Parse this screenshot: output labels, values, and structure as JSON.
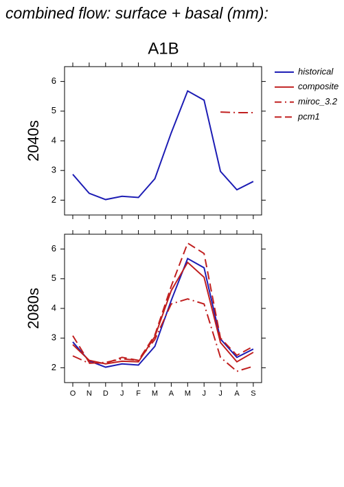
{
  "title": "combined flow: surface + basal (mm):",
  "subtitle": "A1B",
  "chart_data": [
    {
      "type": "line",
      "ylabel": "2040s",
      "ylim": [
        1.5,
        6.5
      ],
      "yticks": [
        2,
        3,
        4,
        5,
        6
      ],
      "series": [
        {
          "name": "historical",
          "color": "#1c1cb4",
          "dash": "solid",
          "values": [
            2.87,
            2.23,
            2.02,
            2.13,
            2.09,
            2.72,
            4.27,
            5.68,
            5.37,
            2.97,
            2.35,
            2.63
          ]
        },
        {
          "name": "miroc_3.2",
          "color": "#c01e1e",
          "dash": "dashdot",
          "values": [
            null,
            null,
            null,
            null,
            null,
            null,
            null,
            null,
            null,
            4.97,
            4.95,
            4.95
          ]
        }
      ]
    },
    {
      "type": "line",
      "ylabel": "2080s",
      "ylim": [
        1.5,
        6.5
      ],
      "yticks": [
        2,
        3,
        4,
        5,
        6
      ],
      "categories": [
        "O",
        "N",
        "D",
        "J",
        "F",
        "M",
        "A",
        "M",
        "J",
        "J",
        "A",
        "S"
      ],
      "series": [
        {
          "name": "historical",
          "color": "#1c1cb4",
          "dash": "solid",
          "values": [
            2.87,
            2.23,
            2.02,
            2.13,
            2.09,
            2.72,
            4.27,
            5.68,
            5.37,
            2.97,
            2.35,
            2.63
          ]
        },
        {
          "name": "composite",
          "color": "#c01e1e",
          "dash": "solid",
          "values": [
            2.78,
            2.25,
            2.13,
            2.22,
            2.2,
            3.05,
            4.6,
            5.55,
            5.05,
            2.85,
            2.2,
            2.52
          ]
        },
        {
          "name": "miroc_3.2",
          "color": "#c01e1e",
          "dash": "dashdot",
          "values": [
            2.4,
            2.15,
            2.18,
            2.3,
            2.25,
            2.95,
            4.15,
            4.32,
            4.15,
            2.35,
            1.88,
            2.05
          ]
        },
        {
          "name": "pcm1",
          "color": "#c01e1e",
          "dash": "dashed",
          "values": [
            3.08,
            2.18,
            2.15,
            2.35,
            2.25,
            3.1,
            4.75,
            6.2,
            5.85,
            3.0,
            2.42,
            2.72
          ]
        }
      ]
    }
  ]
}
